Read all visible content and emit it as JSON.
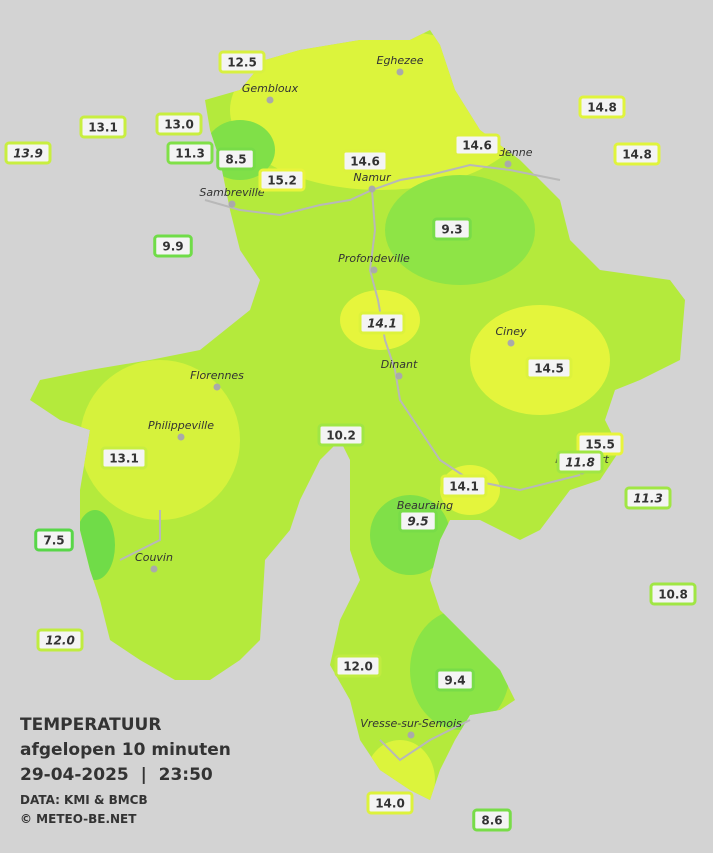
{
  "title": "TEMPERATUUR",
  "subtitle": "afgelopen 10 minuten",
  "datetime": "29-04-2025  |  23:50",
  "credits": [
    "DATA: KMI & BMCB",
    "© METEO-BE.NET"
  ],
  "towns": [
    "Gembloux",
    "Eghezee",
    "Andenne",
    "Namur",
    "Sambreville",
    "Profondeville",
    "Ciney",
    "Dinant",
    "Florennes",
    "Philippeville",
    "Rochefort",
    "Beauraing",
    "Couvin",
    "Vresse-sur-Semois"
  ],
  "stations": [
    {
      "label": "12.5",
      "italic": false
    },
    {
      "label": "13.1",
      "italic": false
    },
    {
      "label": "13.0",
      "italic": false
    },
    {
      "label": "13.9",
      "italic": true
    },
    {
      "label": "11.3",
      "italic": false
    },
    {
      "label": "8.5",
      "italic": false
    },
    {
      "label": "15.2",
      "italic": false
    },
    {
      "label": "14.6",
      "italic": false
    },
    {
      "label": "14.6",
      "italic": false
    },
    {
      "label": "14.8",
      "italic": false
    },
    {
      "label": "14.8",
      "italic": false
    },
    {
      "label": "9.9",
      "italic": false
    },
    {
      "label": "9.3",
      "italic": false
    },
    {
      "label": "14.1",
      "italic": true
    },
    {
      "label": "14.5",
      "italic": false
    },
    {
      "label": "10.2",
      "italic": false
    },
    {
      "label": "13.1",
      "italic": false
    },
    {
      "label": "15.5",
      "italic": false
    },
    {
      "label": "11.8",
      "italic": true
    },
    {
      "label": "11.3",
      "italic": true
    },
    {
      "label": "14.1",
      "italic": false
    },
    {
      "label": "9.5",
      "italic": true
    },
    {
      "label": "7.5",
      "italic": false
    },
    {
      "label": "10.8",
      "italic": false
    },
    {
      "label": "12.0",
      "italic": true
    },
    {
      "label": "12.0",
      "italic": false
    },
    {
      "label": "9.4",
      "italic": false
    },
    {
      "label": "14.0",
      "italic": false
    },
    {
      "label": "8.6",
      "italic": false
    }
  ]
}
